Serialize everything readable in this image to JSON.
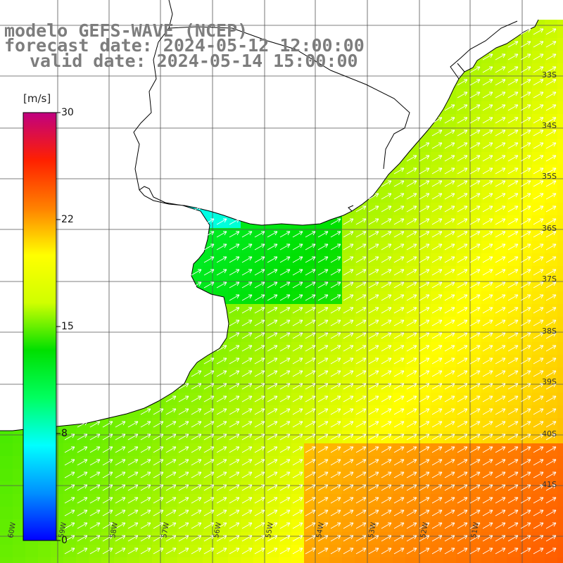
{
  "header": {
    "model_line": "modelo GEFS-WAVE (NCEP)",
    "forecast_line": "forecast date: 2024-05-12 12:00:00",
    "valid_line": "valid date: 2024-05-14 15:00:00"
  },
  "colorbar": {
    "unit": "[m/s]",
    "tick_labels": [
      "30",
      "22",
      "15",
      "8",
      "0"
    ],
    "colors": [
      "#0000ff",
      "#0090ff",
      "#00ffff",
      "#00ff60",
      "#00e000",
      "#d0ff00",
      "#ffff00",
      "#ff8000",
      "#ff2000",
      "#c00080"
    ]
  },
  "map": {
    "lat_labels": [
      "33S",
      "34S",
      "35S",
      "36S",
      "37S",
      "38S",
      "39S",
      "40S",
      "41S"
    ],
    "lon_labels": [
      "60W",
      "59W",
      "58W",
      "57W",
      "56W",
      "55W",
      "54W",
      "53W",
      "52W",
      "51W"
    ],
    "variable": "wind speed and direction",
    "arrow_direction": "toward northeast",
    "land_color": "#ffffff",
    "coastline_color": "#000000"
  }
}
